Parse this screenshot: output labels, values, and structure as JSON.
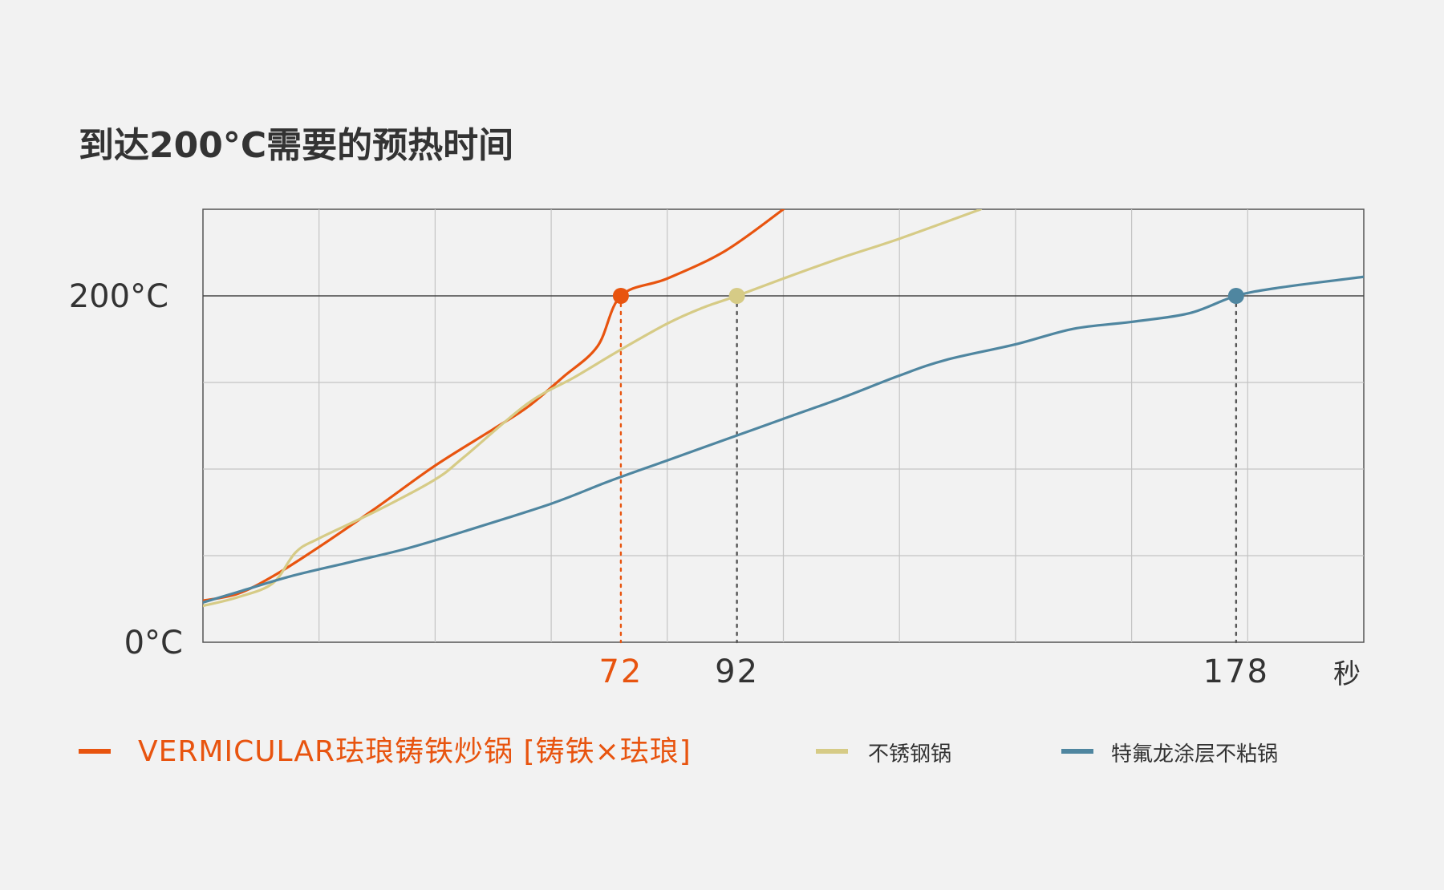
{
  "chart_data": {
    "type": "line",
    "title": "到达200°C需要的预热时间",
    "xlabel": "",
    "ylabel": "",
    "unit_x": "秒",
    "xlim": [
      0,
      200
    ],
    "ylim": [
      0,
      250
    ],
    "y_tick_labels": [
      {
        "value": 200,
        "label": "200°C"
      },
      {
        "value": 0,
        "label": "0°C"
      }
    ],
    "x_markers": [
      {
        "x": 72,
        "label": "72",
        "color": "#e8540f",
        "line_color": "#e8540f"
      },
      {
        "x": 92,
        "label": "92",
        "color": "#333333",
        "line_color": "#555555"
      },
      {
        "x": 178,
        "label": "178",
        "color": "#333333",
        "line_color": "#555555"
      }
    ],
    "grid": true,
    "legend_position": "bottom",
    "series": [
      {
        "name": "VERMICULAR珐琅铸铁炒锅 [铸铁×珐琅]",
        "color": "#e8540f",
        "target_x": 72,
        "points": [
          [
            0,
            24
          ],
          [
            6,
            28
          ],
          [
            12,
            38
          ],
          [
            20,
            55
          ],
          [
            30,
            78
          ],
          [
            40,
            102
          ],
          [
            50,
            123
          ],
          [
            56,
            136
          ],
          [
            62,
            153
          ],
          [
            68,
            171
          ],
          [
            72,
            200
          ],
          [
            80,
            210
          ],
          [
            90,
            226
          ],
          [
            100,
            250
          ]
        ]
      },
      {
        "name": "不锈钢锅",
        "color": "#d6cb86",
        "target_x": 92,
        "points": [
          [
            0,
            21
          ],
          [
            6,
            26
          ],
          [
            12,
            34
          ],
          [
            16,
            52
          ],
          [
            20,
            60
          ],
          [
            30,
            76
          ],
          [
            40,
            94
          ],
          [
            45,
            107
          ],
          [
            56,
            138
          ],
          [
            64,
            153
          ],
          [
            72,
            169
          ],
          [
            80,
            184
          ],
          [
            86,
            193
          ],
          [
            92,
            200
          ],
          [
            100,
            210
          ],
          [
            110,
            222
          ],
          [
            120,
            233
          ],
          [
            134,
            250
          ]
        ]
      },
      {
        "name": "特氟龙涂层不粘锅",
        "color": "#4f86a0",
        "target_x": 178,
        "points": [
          [
            0,
            23
          ],
          [
            6,
            29
          ],
          [
            15,
            38
          ],
          [
            25,
            46
          ],
          [
            35,
            54
          ],
          [
            45,
            64
          ],
          [
            60,
            80
          ],
          [
            70,
            93
          ],
          [
            80,
            105
          ],
          [
            90,
            117
          ],
          [
            100,
            129
          ],
          [
            110,
            141
          ],
          [
            120,
            154
          ],
          [
            128,
            163
          ],
          [
            140,
            172
          ],
          [
            150,
            181
          ],
          [
            160,
            185
          ],
          [
            170,
            190
          ],
          [
            178,
            200
          ],
          [
            186,
            205
          ],
          [
            200,
            211
          ]
        ]
      }
    ]
  }
}
